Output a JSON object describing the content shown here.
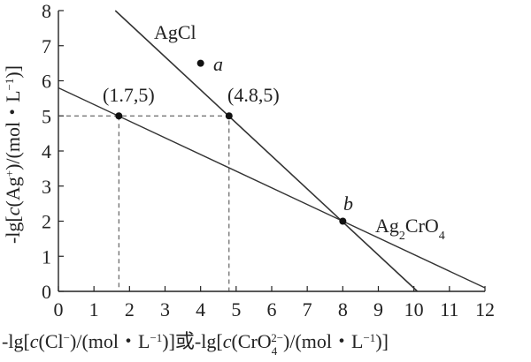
{
  "chart_data": {
    "type": "line",
    "xlabel_parts": {
      "p1": "-lg[",
      "c1": "c",
      "p2": "(Cl",
      "sup1": "−",
      "p3": ")/(mol・L",
      "sup2": "−1",
      "p4": ")]或-lg[",
      "c2": "c",
      "p5": "(CrO",
      "sub3": "4",
      "sup3": "2−",
      "p6": ")/(mol・L",
      "sup4": "−1",
      "p7": ")]"
    },
    "ylabel_parts": {
      "p1": "-lg[",
      "c1": "c",
      "p2": "(Ag",
      "sup1": "+",
      "p3": ")/(mol・L",
      "sup2": "−1",
      "p4": ")]"
    },
    "xlim": [
      0,
      12
    ],
    "ylim": [
      0,
      8
    ],
    "xticks": [
      "0",
      "1",
      "2",
      "3",
      "4",
      "5",
      "6",
      "7",
      "8",
      "9",
      "10",
      "11",
      "12"
    ],
    "yticks": [
      "0",
      "1",
      "2",
      "3",
      "4",
      "5",
      "6",
      "7",
      "8"
    ],
    "series": [
      {
        "name": "AgCl",
        "x": [
          1.6,
          10.1
        ],
        "y": [
          8,
          0
        ]
      },
      {
        "name_parts": {
          "a": "Ag",
          "sub": "2",
          "b": "CrO",
          "sub2": "4"
        },
        "x": [
          0,
          12
        ],
        "y": [
          5.8,
          0.1
        ]
      }
    ],
    "points": [
      {
        "label": "(1.7,5)",
        "x": 1.7,
        "y": 5
      },
      {
        "label": "(4.8,5)",
        "x": 4.8,
        "y": 5
      },
      {
        "label": "a",
        "x": 4.0,
        "y": 6.5
      },
      {
        "label": "b",
        "x": 8.0,
        "y": 2.0
      }
    ],
    "grid": false
  }
}
